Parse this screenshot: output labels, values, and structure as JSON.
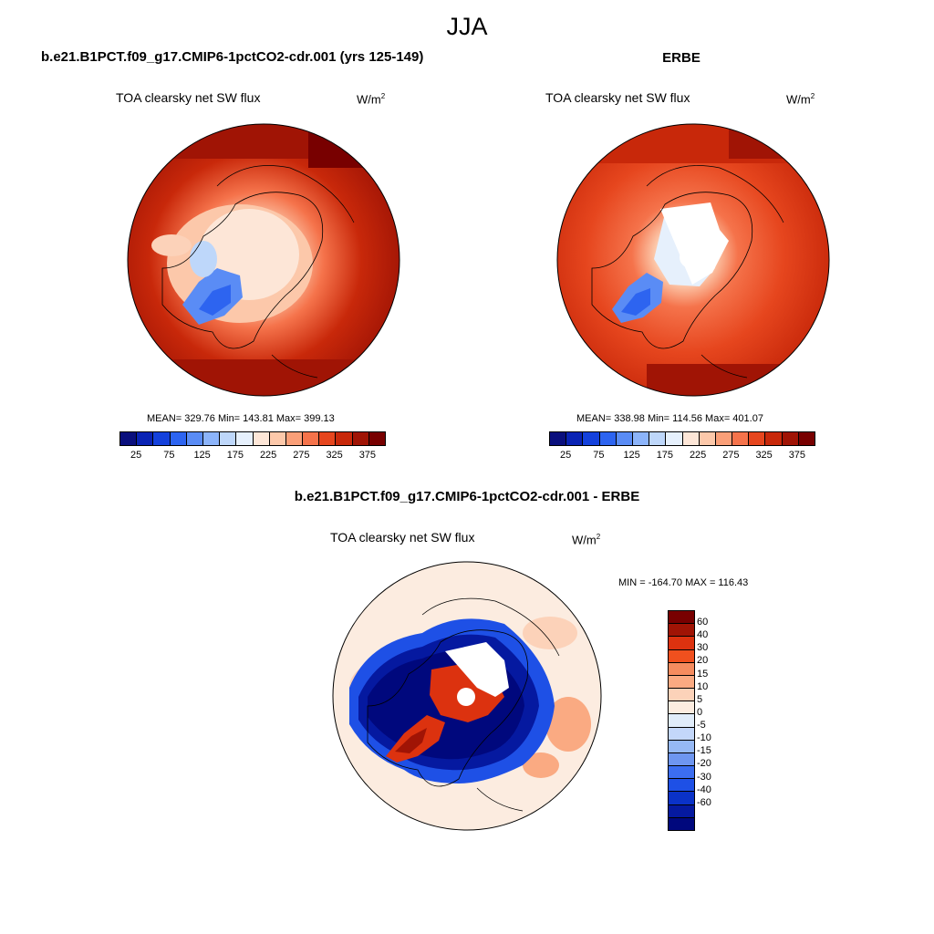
{
  "header": {
    "season": "JJA",
    "case_title": "b.e21.B1PCT.f09_g17.CMIP6-1pctCO2-cdr.001 (yrs 125-149)",
    "obs_title": "ERBE",
    "diff_title": "b.e21.B1PCT.f09_g17.CMIP6-1pctCO2-cdr.001 - ERBE"
  },
  "panels": {
    "model": {
      "variable": "TOA clearsky net SW flux",
      "units": "W/m",
      "units_exp": "2",
      "stats": "MEAN= 329.76  Min= 143.81  Max= 399.13"
    },
    "obs": {
      "variable": "TOA clearsky net SW flux",
      "units": "W/m",
      "units_exp": "2",
      "stats": "MEAN= 338.98  Min= 114.56  Max= 401.07"
    },
    "diff": {
      "variable": "TOA clearsky net SW flux",
      "units": "W/m",
      "units_exp": "2",
      "stats": "MIN = -164.70 MAX = 116.43"
    }
  },
  "colors": {
    "abs_scale": [
      "#0a0f7d",
      "#0a23b4",
      "#1441dc",
      "#2d64f0",
      "#5a8cf5",
      "#8cb4fa",
      "#bed7fa",
      "#e6f0fc",
      "#fde6d7",
      "#fcc8aa",
      "#fa9f78",
      "#f5734b",
      "#e6461e",
      "#c8280a",
      "#a01405",
      "#780000"
    ],
    "diff_scale": [
      "#780000",
      "#a01405",
      "#dc320f",
      "#f0501e",
      "#f58c5f",
      "#faaa82",
      "#fcd2b9",
      "#fcece0",
      "#e0ecfa",
      "#c3d7fa",
      "#96b9f5",
      "#6e96f0",
      "#3c6ef0",
      "#1e50e6",
      "#0a32c8",
      "#0519a0",
      "#00087d"
    ]
  },
  "chart_data": [
    {
      "type": "heatmap",
      "title": "b.e21.B1PCT.f09_g17.CMIP6-1pctCO2-cdr.001 (yrs 125-149)",
      "field": "TOA clearsky net SW flux",
      "units": "W/m2",
      "projection": "north polar stereographic",
      "mean": 329.76,
      "min": 143.81,
      "max": 399.13,
      "colorbar_ticks": [
        25,
        75,
        125,
        175,
        225,
        275,
        325,
        375
      ],
      "colorbar_labels": [
        "25",
        "75",
        "125",
        "175",
        "225",
        "275",
        "325",
        "375"
      ]
    },
    {
      "type": "heatmap",
      "title": "ERBE",
      "field": "TOA clearsky net SW flux",
      "units": "W/m2",
      "projection": "north polar stereographic",
      "mean": 338.98,
      "min": 114.56,
      "max": 401.07,
      "colorbar_ticks": [
        25,
        75,
        125,
        175,
        225,
        275,
        325,
        375
      ],
      "colorbar_labels": [
        "25",
        "75",
        "125",
        "175",
        "225",
        "275",
        "325",
        "375"
      ]
    },
    {
      "type": "heatmap",
      "title": "b.e21.B1PCT.f09_g17.CMIP6-1pctCO2-cdr.001 - ERBE",
      "field": "TOA clearsky net SW flux",
      "units": "W/m2",
      "projection": "north polar stereographic",
      "min": -164.7,
      "max": 116.43,
      "colorbar_levels": [
        60,
        40,
        30,
        20,
        15,
        10,
        5,
        0,
        -5,
        -10,
        -15,
        -20,
        -30,
        -40,
        -60
      ],
      "colorbar_labels": [
        "60",
        "40",
        "30",
        "20",
        "15",
        "10",
        "5",
        "0",
        "-5",
        "-10",
        "-15",
        "-20",
        "-30",
        "-40",
        "-60"
      ]
    }
  ]
}
